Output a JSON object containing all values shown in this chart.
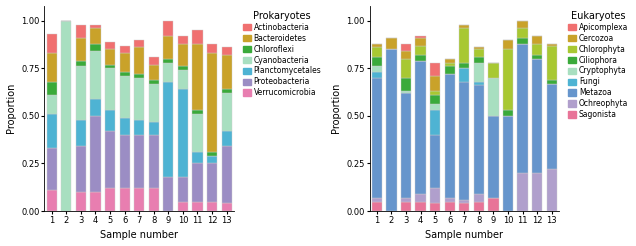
{
  "prokaryotes": {
    "title": "Prokaryotes",
    "xlabel": "Sample number",
    "ylabel": "Proportion",
    "categories": [
      "1",
      "2",
      "3",
      "4",
      "5",
      "6",
      "7",
      "8",
      "9",
      "10",
      "11",
      "12",
      "13"
    ],
    "taxa": [
      "Verrucomicrobia",
      "Proteobacteria",
      "Planctomycetales",
      "Cyanobacteria",
      "Chloroflexi",
      "Bacteroidetes",
      "Actinobacteria"
    ],
    "colors": [
      "#e87eb0",
      "#9b8dc4",
      "#4eb3d3",
      "#a8dfc0",
      "#3aaa3a",
      "#c9a22a",
      "#f07070"
    ],
    "data": {
      "Verrucomicrobia": [
        0.11,
        0.0,
        0.1,
        0.1,
        0.12,
        0.12,
        0.12,
        0.12,
        0.0,
        0.05,
        0.05,
        0.05,
        0.04
      ],
      "Proteobacteria": [
        0.22,
        0.0,
        0.24,
        0.4,
        0.3,
        0.28,
        0.28,
        0.28,
        0.18,
        0.13,
        0.2,
        0.2,
        0.3
      ],
      "Planctomycetales": [
        0.18,
        0.0,
        0.14,
        0.09,
        0.11,
        0.09,
        0.08,
        0.07,
        0.5,
        0.46,
        0.06,
        0.04,
        0.08
      ],
      "Cyanobacteria": [
        0.1,
        1.0,
        0.28,
        0.25,
        0.22,
        0.22,
        0.22,
        0.2,
        0.1,
        0.1,
        0.2,
        0.0,
        0.2
      ],
      "Chloroflexi": [
        0.07,
        0.0,
        0.03,
        0.04,
        0.02,
        0.02,
        0.02,
        0.02,
        0.02,
        0.02,
        0.02,
        0.02,
        0.02
      ],
      "Bacteroidetes": [
        0.15,
        0.0,
        0.12,
        0.08,
        0.08,
        0.1,
        0.14,
        0.08,
        0.12,
        0.12,
        0.35,
        0.52,
        0.18
      ],
      "Actinobacteria": [
        0.1,
        0.0,
        0.07,
        0.02,
        0.04,
        0.04,
        0.04,
        0.04,
        0.08,
        0.04,
        0.07,
        0.05,
        0.04
      ]
    }
  },
  "eukaryotes": {
    "title": "Eukaryotes",
    "xlabel": "Sample number",
    "ylabel": "Proportion",
    "categories": [
      "1",
      "2",
      "3",
      "4",
      "5",
      "6",
      "7",
      "8",
      "9",
      "10",
      "11",
      "12",
      "13"
    ],
    "taxa": [
      "Sagonista",
      "Ochreophyta",
      "Metazoa",
      "Fungi",
      "Cryptophyta",
      "Ciliophora",
      "Chlorophyta",
      "Cercozoa",
      "Apicomplexa"
    ],
    "colors": [
      "#e87498",
      "#b09fcc",
      "#6695cc",
      "#4eb3d3",
      "#a8dfc0",
      "#3aaa3a",
      "#a8c832",
      "#c9a22a",
      "#f07070"
    ],
    "data": {
      "Sagonista": [
        0.05,
        0.0,
        0.05,
        0.05,
        0.04,
        0.05,
        0.04,
        0.05,
        0.07,
        0.0,
        0.0,
        0.0,
        0.0
      ],
      "Ochreophyta": [
        0.02,
        0.0,
        0.02,
        0.04,
        0.08,
        0.02,
        0.02,
        0.04,
        0.0,
        0.0,
        0.2,
        0.2,
        0.22
      ],
      "Metazoa": [
        0.63,
        0.85,
        0.55,
        0.7,
        0.28,
        0.65,
        0.62,
        0.57,
        0.43,
        0.5,
        0.68,
        0.6,
        0.45
      ],
      "Fungi": [
        0.03,
        0.0,
        0.0,
        0.0,
        0.13,
        0.0,
        0.07,
        0.02,
        0.0,
        0.0,
        0.0,
        0.0,
        0.0
      ],
      "Cryptophyta": [
        0.03,
        0.0,
        0.01,
        0.0,
        0.03,
        0.0,
        0.0,
        0.1,
        0.2,
        0.0,
        0.0,
        0.0,
        0.0
      ],
      "Ciliophora": [
        0.05,
        0.0,
        0.07,
        0.03,
        0.05,
        0.04,
        0.03,
        0.03,
        0.0,
        0.03,
        0.03,
        0.02,
        0.02
      ],
      "Chlorophyta": [
        0.05,
        0.0,
        0.1,
        0.05,
        0.02,
        0.02,
        0.18,
        0.04,
        0.08,
        0.32,
        0.05,
        0.06,
        0.18
      ],
      "Cercozoa": [
        0.02,
        0.06,
        0.04,
        0.04,
        0.08,
        0.02,
        0.02,
        0.01,
        0.0,
        0.05,
        0.04,
        0.04,
        0.01
      ],
      "Apicomplexa": [
        0.0,
        0.0,
        0.04,
        0.01,
        0.07,
        0.0,
        0.0,
        0.0,
        0.0,
        0.0,
        0.0,
        0.0,
        0.0
      ]
    }
  }
}
